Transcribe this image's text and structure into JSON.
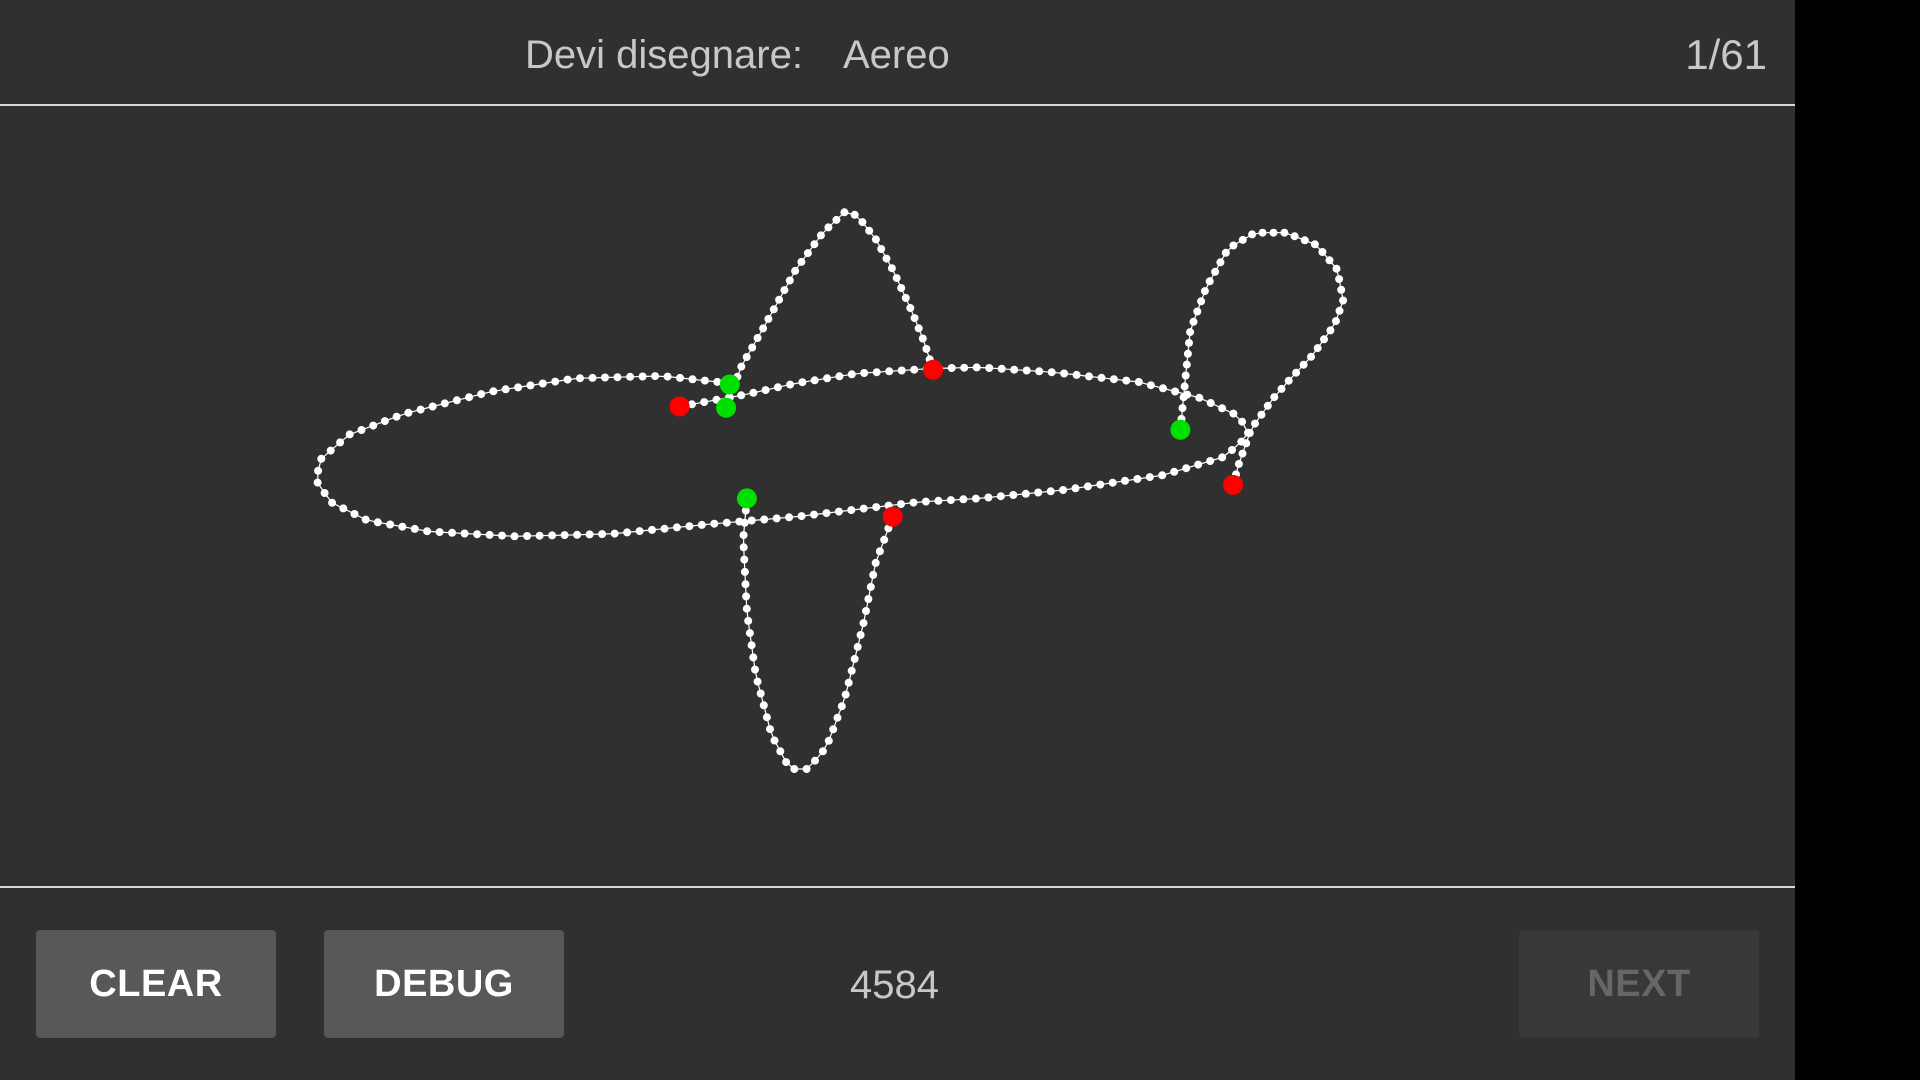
{
  "header": {
    "prompt_label": "Devi disegnare:",
    "prompt_word": "Aereo",
    "counter": "1/61"
  },
  "footer": {
    "clear_label": "CLEAR",
    "debug_label": "DEBUG",
    "score": "4584",
    "next_label": "NEXT"
  },
  "colors": {
    "background": "#303030",
    "stroke": "#ffffff",
    "start_marker": "#00e000",
    "end_marker": "#ff0000",
    "button": "#585858",
    "button_disabled": "#383838"
  },
  "icons": [
    "drawing-canvas"
  ],
  "next_enabled": false
}
